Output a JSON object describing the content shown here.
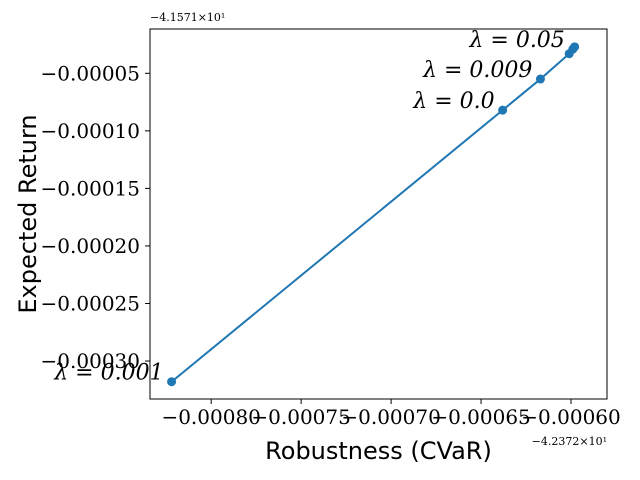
{
  "chart_data": {
    "type": "line",
    "xlabel": "Robustness (CVaR)",
    "ylabel": "Expected Return",
    "x_offset_label": "−4.2372×10¹",
    "y_offset_label": "−4.1571×10¹",
    "xlim": [
      -0.000834,
      -0.00058
    ],
    "ylim": [
      -0.000333,
      -1.15e-05
    ],
    "xticks": [
      -0.0008,
      -0.00075,
      -0.0007,
      -0.00065,
      -0.0006
    ],
    "xtick_labels": [
      "−0.00080",
      "−0.00075",
      "−0.00070",
      "−0.00065",
      "−0.00060"
    ],
    "yticks": [
      -5e-05,
      -0.0001,
      -0.00015,
      -0.0002,
      -0.00025,
      -0.0003
    ],
    "ytick_labels": [
      "−0.00005",
      "−0.00010",
      "−0.00015",
      "−0.00020",
      "−0.00025",
      "−0.00030"
    ],
    "grid": false,
    "color": "#1f77b4",
    "series": [
      {
        "x": [
          -0.000822,
          -0.000638,
          -0.000617,
          -0.000601,
          -0.000599,
          -0.000598
        ],
        "y": [
          -0.000318,
          -8.2e-05,
          -5.5e-05,
          -3.3e-05,
          -2.9e-05,
          -2.7e-05
        ]
      }
    ],
    "annotations": [
      {
        "text": "λ = 0.001",
        "x": -0.000822,
        "y": -0.000318
      },
      {
        "text": "λ = 0.0",
        "x": -0.000638,
        "y": -8.2e-05
      },
      {
        "text": "λ = 0.009",
        "x": -0.000617,
        "y": -5.5e-05
      },
      {
        "text": "λ = 0.05",
        "x": -0.000599,
        "y": -2.9e-05
      }
    ]
  }
}
